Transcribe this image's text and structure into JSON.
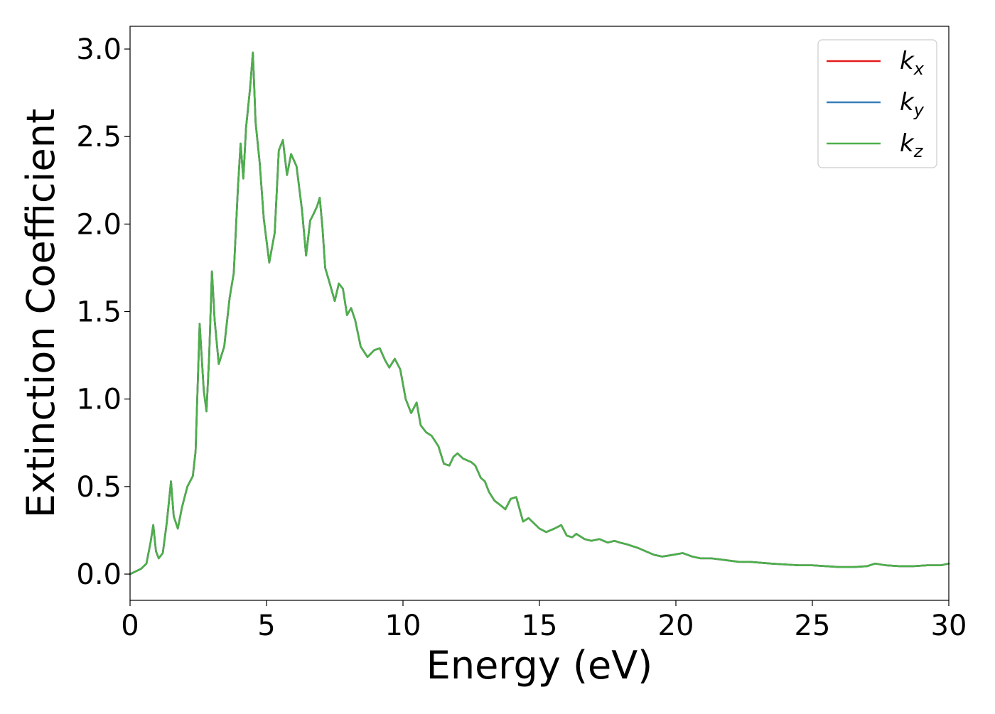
{
  "chart_data": {
    "type": "line",
    "title": "",
    "xlabel": "Energy (eV)",
    "ylabel": "Extinction Coefficient",
    "xlim": [
      0,
      30
    ],
    "ylim": [
      -0.15,
      3.13
    ],
    "xticks": [
      0,
      5,
      10,
      15,
      20,
      25,
      30
    ],
    "xtick_labels": [
      "0",
      "5",
      "10",
      "15",
      "20",
      "25",
      "30"
    ],
    "yticks": [
      0.0,
      0.5,
      1.0,
      1.5,
      2.0,
      2.5,
      3.0
    ],
    "ytick_labels": [
      "0.0",
      "0.5",
      "1.0",
      "1.5",
      "2.0",
      "2.5",
      "3.0"
    ],
    "grid": false,
    "legend_position": "top-right",
    "x": [
      0,
      0.4,
      0.6,
      0.75,
      0.85,
      0.95,
      1.05,
      1.2,
      1.35,
      1.5,
      1.6,
      1.75,
      1.9,
      2.1,
      2.3,
      2.4,
      2.55,
      2.7,
      2.8,
      2.9,
      3.0,
      3.1,
      3.25,
      3.45,
      3.65,
      3.8,
      3.95,
      4.05,
      4.15,
      4.25,
      4.4,
      4.5,
      4.6,
      4.75,
      4.9,
      5.1,
      5.3,
      5.45,
      5.6,
      5.75,
      5.9,
      6.1,
      6.3,
      6.45,
      6.6,
      6.7,
      6.85,
      6.95,
      7.05,
      7.15,
      7.3,
      7.5,
      7.65,
      7.8,
      7.95,
      8.1,
      8.25,
      8.45,
      8.7,
      8.95,
      9.15,
      9.35,
      9.5,
      9.7,
      9.9,
      10.1,
      10.3,
      10.5,
      10.65,
      10.85,
      11.05,
      11.3,
      11.5,
      11.7,
      11.85,
      12.0,
      12.2,
      12.5,
      12.65,
      12.85,
      13.0,
      13.15,
      13.35,
      13.6,
      13.75,
      13.95,
      14.15,
      14.4,
      14.6,
      14.8,
      15.0,
      15.25,
      15.55,
      15.8,
      16.0,
      16.2,
      16.35,
      16.65,
      16.9,
      17.2,
      17.5,
      17.75,
      17.95,
      18.2,
      18.6,
      18.9,
      19.2,
      19.5,
      19.9,
      20.25,
      20.6,
      20.9,
      21.3,
      21.8,
      22.3,
      22.7,
      23.1,
      23.5,
      24.0,
      24.5,
      25.0,
      25.5,
      26.0,
      26.5,
      27.0,
      27.3,
      27.7,
      28.2,
      28.7,
      29.2,
      29.7,
      30.0
    ],
    "series": [
      {
        "name": "k_x",
        "color": "#e41a1c",
        "values": [
          0.0,
          0.03,
          0.06,
          0.18,
          0.28,
          0.13,
          0.09,
          0.12,
          0.3,
          0.53,
          0.33,
          0.26,
          0.38,
          0.5,
          0.56,
          0.7,
          1.43,
          1.05,
          0.93,
          1.25,
          1.73,
          1.45,
          1.2,
          1.3,
          1.58,
          1.72,
          2.2,
          2.46,
          2.26,
          2.55,
          2.78,
          2.98,
          2.58,
          2.35,
          2.03,
          1.78,
          1.95,
          2.42,
          2.48,
          2.28,
          2.4,
          2.33,
          2.08,
          1.82,
          2.02,
          2.05,
          2.1,
          2.15,
          1.98,
          1.75,
          1.67,
          1.56,
          1.66,
          1.63,
          1.48,
          1.52,
          1.45,
          1.3,
          1.24,
          1.28,
          1.29,
          1.22,
          1.18,
          1.23,
          1.17,
          1.0,
          0.92,
          0.98,
          0.85,
          0.81,
          0.79,
          0.73,
          0.63,
          0.62,
          0.67,
          0.69,
          0.66,
          0.64,
          0.62,
          0.55,
          0.53,
          0.47,
          0.42,
          0.39,
          0.37,
          0.43,
          0.44,
          0.3,
          0.32,
          0.29,
          0.26,
          0.24,
          0.26,
          0.28,
          0.22,
          0.21,
          0.23,
          0.2,
          0.19,
          0.2,
          0.18,
          0.19,
          0.18,
          0.17,
          0.15,
          0.13,
          0.11,
          0.1,
          0.11,
          0.12,
          0.1,
          0.09,
          0.09,
          0.08,
          0.07,
          0.07,
          0.065,
          0.06,
          0.055,
          0.05,
          0.05,
          0.045,
          0.04,
          0.04,
          0.045,
          0.06,
          0.05,
          0.045,
          0.045,
          0.05,
          0.05,
          0.06
        ]
      },
      {
        "name": "k_y",
        "color": "#377eb8",
        "values": [
          0.0,
          0.03,
          0.06,
          0.18,
          0.28,
          0.13,
          0.09,
          0.12,
          0.3,
          0.53,
          0.33,
          0.26,
          0.38,
          0.5,
          0.56,
          0.7,
          1.43,
          1.05,
          0.93,
          1.25,
          1.73,
          1.45,
          1.2,
          1.3,
          1.58,
          1.72,
          2.2,
          2.46,
          2.26,
          2.55,
          2.78,
          2.98,
          2.58,
          2.35,
          2.03,
          1.78,
          1.95,
          2.42,
          2.48,
          2.28,
          2.4,
          2.33,
          2.08,
          1.82,
          2.02,
          2.05,
          2.1,
          2.15,
          1.98,
          1.75,
          1.67,
          1.56,
          1.66,
          1.63,
          1.48,
          1.52,
          1.45,
          1.3,
          1.24,
          1.28,
          1.29,
          1.22,
          1.18,
          1.23,
          1.17,
          1.0,
          0.92,
          0.98,
          0.85,
          0.81,
          0.79,
          0.73,
          0.63,
          0.62,
          0.67,
          0.69,
          0.66,
          0.64,
          0.62,
          0.55,
          0.53,
          0.47,
          0.42,
          0.39,
          0.37,
          0.43,
          0.44,
          0.3,
          0.32,
          0.29,
          0.26,
          0.24,
          0.26,
          0.28,
          0.22,
          0.21,
          0.23,
          0.2,
          0.19,
          0.2,
          0.18,
          0.19,
          0.18,
          0.17,
          0.15,
          0.13,
          0.11,
          0.1,
          0.11,
          0.12,
          0.1,
          0.09,
          0.09,
          0.08,
          0.07,
          0.07,
          0.065,
          0.06,
          0.055,
          0.05,
          0.05,
          0.045,
          0.04,
          0.04,
          0.045,
          0.06,
          0.05,
          0.045,
          0.045,
          0.05,
          0.05,
          0.06
        ]
      },
      {
        "name": "k_z",
        "color": "#4daf4a",
        "values": [
          0.0,
          0.03,
          0.06,
          0.18,
          0.28,
          0.13,
          0.09,
          0.12,
          0.3,
          0.53,
          0.33,
          0.26,
          0.38,
          0.5,
          0.56,
          0.7,
          1.43,
          1.05,
          0.93,
          1.25,
          1.73,
          1.45,
          1.2,
          1.3,
          1.58,
          1.72,
          2.2,
          2.46,
          2.26,
          2.55,
          2.78,
          2.98,
          2.58,
          2.35,
          2.03,
          1.78,
          1.95,
          2.42,
          2.48,
          2.28,
          2.4,
          2.33,
          2.08,
          1.82,
          2.02,
          2.05,
          2.1,
          2.15,
          1.98,
          1.75,
          1.67,
          1.56,
          1.66,
          1.63,
          1.48,
          1.52,
          1.45,
          1.3,
          1.24,
          1.28,
          1.29,
          1.22,
          1.18,
          1.23,
          1.17,
          1.0,
          0.92,
          0.98,
          0.85,
          0.81,
          0.79,
          0.73,
          0.63,
          0.62,
          0.67,
          0.69,
          0.66,
          0.64,
          0.62,
          0.55,
          0.53,
          0.47,
          0.42,
          0.39,
          0.37,
          0.43,
          0.44,
          0.3,
          0.32,
          0.29,
          0.26,
          0.24,
          0.26,
          0.28,
          0.22,
          0.21,
          0.23,
          0.2,
          0.19,
          0.2,
          0.18,
          0.19,
          0.18,
          0.17,
          0.15,
          0.13,
          0.11,
          0.1,
          0.11,
          0.12,
          0.1,
          0.09,
          0.09,
          0.08,
          0.07,
          0.07,
          0.065,
          0.06,
          0.055,
          0.05,
          0.05,
          0.045,
          0.04,
          0.04,
          0.045,
          0.06,
          0.05,
          0.045,
          0.045,
          0.05,
          0.05,
          0.06
        ]
      }
    ],
    "legend": [
      {
        "symbol": "k",
        "sub": "x"
      },
      {
        "symbol": "k",
        "sub": "y"
      },
      {
        "symbol": "k",
        "sub": "z"
      }
    ]
  }
}
